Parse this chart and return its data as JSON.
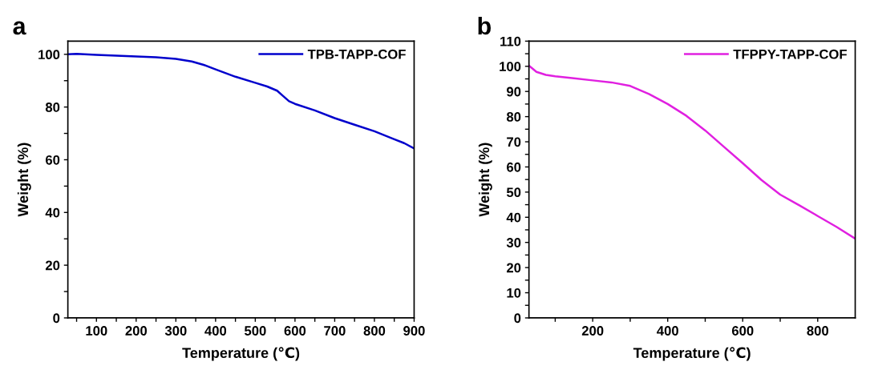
{
  "chart_data": [
    {
      "type": "line",
      "title": "a",
      "xlabel": "Temperature (℃)",
      "ylabel": "Weight (%)",
      "legend": "top right",
      "grid": false,
      "marker": "none",
      "line_style": "solid",
      "xlim": [
        28,
        900
      ],
      "ylim": [
        0,
        105
      ],
      "xticks": [
        {
          "value": 50,
          "label": null
        },
        100,
        {
          "value": 150,
          "label": null
        },
        200,
        {
          "value": 250,
          "label": null
        },
        300,
        {
          "value": 350,
          "label": null
        },
        400,
        {
          "value": 450,
          "label": null
        },
        500,
        {
          "value": 550,
          "label": null
        },
        600,
        {
          "value": 650,
          "label": null
        },
        700,
        {
          "value": 750,
          "label": null
        },
        800,
        {
          "value": 850,
          "label": null
        },
        900
      ],
      "yticks": [
        0,
        {
          "value": 10,
          "label": null
        },
        20,
        {
          "value": 30,
          "label": null
        },
        40,
        {
          "value": 50,
          "label": null
        },
        60,
        {
          "value": 70,
          "label": null
        },
        80,
        {
          "value": 90,
          "label": null
        },
        100
      ],
      "series": [
        {
          "name": "TPB-TAPP-COF",
          "color": "#0000cc",
          "x": [
            28,
            50,
            100,
            150,
            200,
            250,
            300,
            340,
            370,
            400,
            450,
            500,
            530,
            555,
            570,
            585,
            600,
            650,
            700,
            750,
            800,
            850,
            875,
            900
          ],
          "values": [
            100,
            100.2,
            99.8,
            99.5,
            99.2,
            98.9,
            98.3,
            97.3,
            96,
            94.3,
            91.5,
            89.2,
            87.8,
            86.2,
            84.2,
            82.2,
            81.2,
            78.7,
            75.8,
            73.3,
            70.8,
            67.8,
            66.3,
            64.3
          ]
        }
      ]
    },
    {
      "type": "line",
      "title": "b",
      "xlabel": "Temperature (℃)",
      "ylabel": "Weight (%)",
      "legend": "top right",
      "grid": false,
      "marker": "none",
      "line_style": "solid",
      "xlim": [
        30,
        900
      ],
      "ylim": [
        0,
        110
      ],
      "xticks": [
        {
          "value": 100,
          "label": null
        },
        200,
        {
          "value": 300,
          "label": null
        },
        400,
        {
          "value": 500,
          "label": null
        },
        600,
        {
          "value": 700,
          "label": null
        },
        800
      ],
      "yticks": [
        0,
        {
          "value": 5,
          "label": null
        },
        10,
        {
          "value": 15,
          "label": null
        },
        20,
        {
          "value": 25,
          "label": null
        },
        30,
        {
          "value": 35,
          "label": null
        },
        40,
        {
          "value": 45,
          "label": null
        },
        50,
        {
          "value": 55,
          "label": null
        },
        60,
        {
          "value": 65,
          "label": null
        },
        70,
        {
          "value": 75,
          "label": null
        },
        80,
        {
          "value": 85,
          "label": null
        },
        90,
        {
          "value": 95,
          "label": null
        },
        100,
        {
          "value": 105,
          "label": null
        },
        110
      ],
      "series": [
        {
          "name": "TFPPY-TAPP-COF",
          "color": "#e020e0",
          "x": [
            30,
            50,
            75,
            100,
            150,
            200,
            250,
            300,
            350,
            400,
            450,
            500,
            550,
            600,
            650,
            700,
            750,
            800,
            850,
            900
          ],
          "values": [
            100.3,
            97.8,
            96.6,
            96,
            95.2,
            94.4,
            93.6,
            92.2,
            89,
            85,
            80.3,
            74.5,
            68,
            61.5,
            54.8,
            49,
            44.8,
            40.5,
            36.2,
            31.5
          ]
        }
      ]
    }
  ]
}
